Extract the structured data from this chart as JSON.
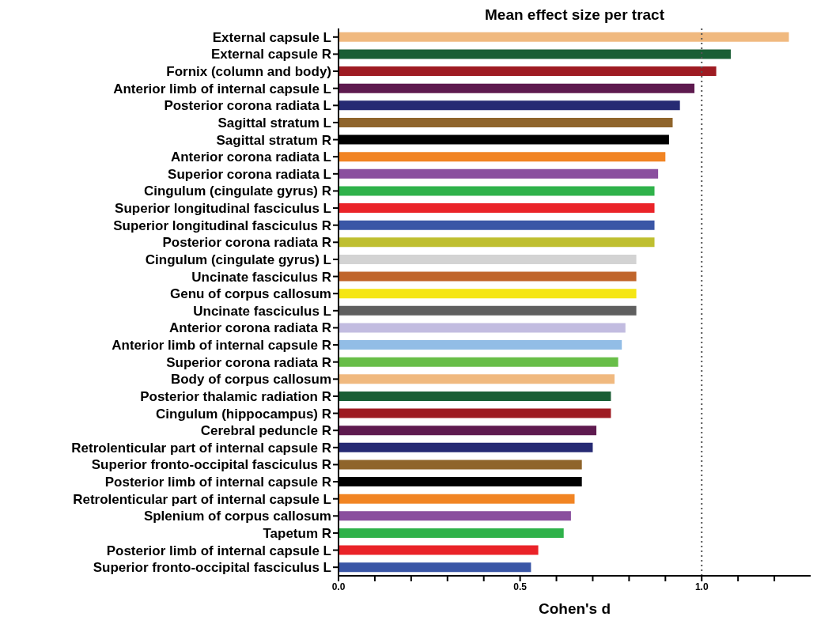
{
  "chart_data": {
    "type": "bar",
    "orientation": "horizontal",
    "title": "Mean effect size per tract",
    "xlabel": "Cohen's d",
    "categories": [
      "External capsule L",
      "External capsule R",
      "Fornix (column and body)",
      "Anterior limb of internal capsule L",
      "Posterior corona radiata L",
      "Sagittal stratum L",
      "Sagittal stratum R",
      "Anterior corona radiata L",
      "Superior corona radiata L",
      "Cingulum (cingulate gyrus) R",
      "Superior longitudinal fasciculus L",
      "Superior longitudinal fasciculus R",
      "Posterior corona radiata R",
      "Cingulum (cingulate gyrus) L",
      "Uncinate fasciculus R",
      "Genu of corpus callosum",
      "Uncinate fasciculus L",
      "Anterior corona radiata R",
      "Anterior limb of internal capsule R",
      "Superior corona radiata R",
      "Body of corpus callosum",
      "Posterior thalamic radiation R",
      "Cingulum (hippocampus) R",
      "Cerebral peduncle R",
      "Retrolenticular part of internal capsule R",
      "Superior fronto-occipital fasciculus R",
      "Posterior limb of internal capsule R",
      "Retrolenticular part of internal capsule L",
      "Splenium of corpus callosum",
      "Tapetum R",
      "Posterior limb of internal capsule L",
      "Superior fronto-occipital fasciculus L"
    ],
    "values": [
      1.24,
      1.08,
      1.04,
      0.98,
      0.94,
      0.92,
      0.91,
      0.9,
      0.88,
      0.87,
      0.87,
      0.87,
      0.87,
      0.82,
      0.82,
      0.82,
      0.82,
      0.79,
      0.78,
      0.77,
      0.76,
      0.75,
      0.75,
      0.71,
      0.7,
      0.67,
      0.67,
      0.65,
      0.64,
      0.62,
      0.55,
      0.53
    ],
    "colors": [
      "#f0b97f",
      "#1a5e35",
      "#9e1b22",
      "#5e1a4f",
      "#262a73",
      "#8f642b",
      "#000000",
      "#f18423",
      "#8a4f9e",
      "#2fb24a",
      "#ea2328",
      "#3a56a6",
      "#bfbf30",
      "#d3d3d3",
      "#c0652b",
      "#f5e614",
      "#5f5f5f",
      "#c2bce0",
      "#92bde6",
      "#68be48",
      "#f0b97f",
      "#1a5e35",
      "#9e1b22",
      "#5e1a4f",
      "#262a73",
      "#8f642b",
      "#000000",
      "#f18423",
      "#8a4f9e",
      "#2fb24a",
      "#ea2328",
      "#3a56a6"
    ],
    "xlim": [
      0,
      1.3
    ],
    "xticks": [
      {
        "value": 0,
        "label": "0.0"
      },
      {
        "value": 0.1,
        "label": null
      },
      {
        "value": 0.2,
        "label": null
      },
      {
        "value": 0.3,
        "label": null
      },
      {
        "value": 0.4,
        "label": null
      },
      {
        "value": 0.5,
        "label": "0.5"
      },
      {
        "value": 0.6,
        "label": null
      },
      {
        "value": 0.7,
        "label": null
      },
      {
        "value": 0.8,
        "label": null
      },
      {
        "value": 0.9,
        "label": null
      },
      {
        "value": 1.0,
        "label": "1.0"
      },
      {
        "value": 1.1,
        "label": null
      },
      {
        "value": 1.2,
        "label": null
      }
    ],
    "ref_lines": [
      {
        "axis": "x",
        "value": 1.0,
        "line_style": "dotted",
        "color": "#555555"
      }
    ],
    "grid": false,
    "legend": false
  }
}
